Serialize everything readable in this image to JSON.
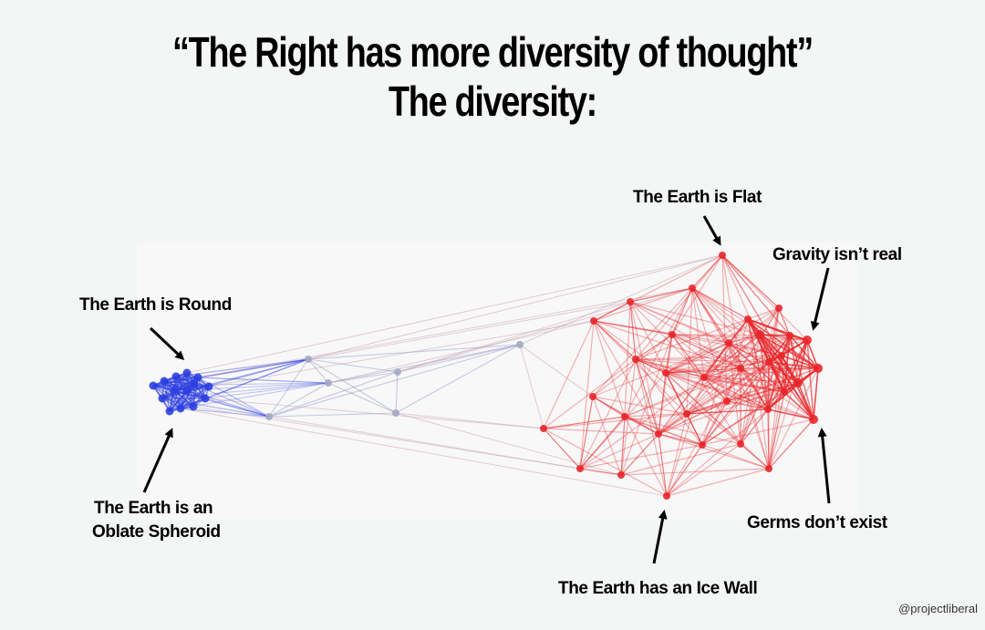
{
  "title": {
    "line1": "“The Right has more diversity of thought”",
    "line2": "The diversity:"
  },
  "annotations": {
    "earth_round": "The Earth is Round",
    "oblate_line1": "The Earth is an",
    "oblate_line2": "Oblate Spheroid",
    "earth_flat": "The Earth is Flat",
    "gravity": "Gravity isn’t real",
    "germs": "Germs don’t exist",
    "ice_wall": "The Earth has an Ice Wall"
  },
  "watermark": "@projectliberal",
  "colors": {
    "left_cluster": "#2c3ee0",
    "right_cluster": "#e8262a",
    "middle_nodes": "#a3a7c2"
  }
}
